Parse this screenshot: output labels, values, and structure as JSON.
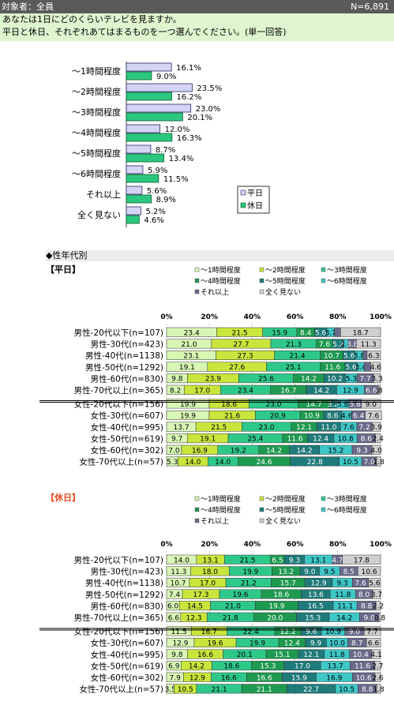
{
  "header": {
    "target": "対象者：全員",
    "n": "N=6,891"
  },
  "question": {
    "line1": "あなたは1日にどのくらいテレビを見ますか。",
    "line2": "平日と休日、それぞれあてはまるものを一つ選んでください。(単一回答)"
  },
  "section": {
    "title": "◆性年代別"
  },
  "weekday_title": "【平日】",
  "holiday_title": "【休日】",
  "colors": {
    "weekday_bar": "#d4d4f4",
    "holiday_bar": "#2cc77f",
    "seg": [
      "#d8f6b4",
      "#c8e63c",
      "#2ec98a",
      "#1e9a50",
      "#1f7a7a",
      "#3ec7c7",
      "#6a6a8a",
      "#cfcfcf"
    ]
  },
  "chart_data": [
    {
      "type": "bar",
      "orientation": "horizontal",
      "categories": [
        "～1時間程度",
        "～2時間程度",
        "～3時間程度",
        "～4時間程度",
        "～5時間程度",
        "～6時間程度",
        "それ以上",
        "全く見ない"
      ],
      "series": [
        {
          "name": "平日",
          "values": [
            16.1,
            23.5,
            23.0,
            12.0,
            8.7,
            5.9,
            5.6,
            5.2
          ]
        },
        {
          "name": "休日",
          "values": [
            9.0,
            16.2,
            20.1,
            16.3,
            13.4,
            11.5,
            8.9,
            4.6
          ]
        }
      ],
      "value_labels": {
        "平日": [
          "16.1%",
          "23.5%",
          "23.0%",
          "12.0%",
          "8.7%",
          "5.9%",
          "5.6%",
          "5.2%"
        ],
        "休日": [
          "9.0%",
          "16.2%",
          "20.1%",
          "16.3%",
          "13.4%",
          "11.5%",
          "8.9%",
          "4.6%"
        ]
      },
      "xlim": [
        0,
        45
      ],
      "legend": "right"
    },
    {
      "type": "bar",
      "stacked": true,
      "orientation": "horizontal",
      "title": "【平日】",
      "legend_labels": [
        "～1時間程度",
        "～2時間程度",
        "～3時間程度",
        "～4時間程度",
        "～5時間程度",
        "～6時間程度",
        "それ以上",
        "全く見ない"
      ],
      "xticks": [
        "0%",
        "20%",
        "40%",
        "60%",
        "80%",
        "100%"
      ],
      "categories": [
        "男性-20代以下(n=107)",
        "男性-30代(n=423)",
        "男性-40代(n=1138)",
        "男性-50代(n=1292)",
        "男性-60代(n=830)",
        "男性-70代以上(n=365)",
        "女性-20代以下(n=156)",
        "女性-30代(n=607)",
        "女性-40代(n=995)",
        "女性-50代(n=619)",
        "女性-60代(n=302)",
        "女性-70代以上(n=57)"
      ],
      "rows": [
        [
          23.4,
          21.5,
          15.9,
          8.4,
          5.6,
          3.7,
          2.8,
          18.7
        ],
        [
          21.0,
          27.7,
          21.3,
          7.6,
          5.2,
          2.1,
          3.8,
          11.3
        ],
        [
          23.1,
          27.3,
          21.4,
          10.7,
          5.6,
          3.8,
          1.8,
          6.3
        ],
        [
          19.1,
          27.6,
          25.1,
          11.6,
          5.6,
          3.4,
          3.0,
          4.6
        ],
        [
          9.8,
          23.9,
          25.6,
          14.2,
          10.2,
          5.3,
          7.7,
          3.3
        ],
        [
          8.2,
          17.0,
          23.4,
          16.7,
          14.2,
          12.9,
          6.6,
          0.8
        ],
        [
          19.9,
          18.6,
          23.0,
          14.7,
          3.2,
          5.8,
          5.8,
          9.0
        ],
        [
          19.9,
          21.6,
          20.9,
          10.9,
          8.6,
          4.6,
          6.4,
          7.6
        ],
        [
          13.7,
          21.5,
          23.0,
          12.1,
          11.0,
          7.6,
          7.2,
          3.9
        ],
        [
          9.7,
          19.1,
          25.4,
          11.6,
          12.4,
          10.8,
          8.6,
          2.4
        ],
        [
          7.0,
          16.9,
          19.2,
          14.2,
          14.2,
          15.2,
          9.3,
          4.0
        ],
        [
          5.3,
          14.0,
          14.0,
          24.6,
          22.8,
          10.5,
          7.0,
          1.8
        ]
      ],
      "labels": [
        [
          "23.4",
          "21.5",
          "15.9",
          "8.4",
          "5.6",
          "3.7",
          "",
          "18.7"
        ],
        [
          "21.0",
          "27.7",
          "21.3",
          "7.6",
          "5.2",
          "2.1",
          "3.8",
          "11.3"
        ],
        [
          "23.1",
          "27.3",
          "21.4",
          "10.7",
          "5.6",
          "3.8",
          "",
          "6.3"
        ],
        [
          "19.1",
          "27.6",
          "25.1",
          "11.6",
          "5.6",
          "3.4",
          "",
          "4.6"
        ],
        [
          "9.8",
          "23.9",
          "25.6",
          "14.2",
          "10.2",
          "5.3",
          "7.7",
          "3.3"
        ],
        [
          "8.2",
          "17.0",
          "23.4",
          "16.7",
          "14.2",
          "12.9",
          "6.6",
          ".8"
        ],
        [
          "19.9",
          "18.6",
          "23.0",
          "14.7",
          "3.2",
          "5.8",
          "5.8",
          "9.0"
        ],
        [
          "19.9",
          "21.6",
          "20.9",
          "10.9",
          "8.6",
          "4.6",
          "6.4",
          "7.6"
        ],
        [
          "13.7",
          "21.5",
          "23.0",
          "12.1",
          "11.0",
          "7.6",
          "7.2",
          "3.9"
        ],
        [
          "9.7",
          "19.1",
          "25.4",
          "11.6",
          "12.4",
          "10.8",
          "8.6",
          "2.4"
        ],
        [
          "7.0",
          "16.9",
          "19.2",
          "14.2",
          "14.2",
          "15.2",
          "9.3",
          "4.0"
        ],
        [
          "5.3",
          "14.0",
          "14.0",
          "24.6",
          "22.8",
          "10.5",
          "7.0",
          "1.8"
        ]
      ]
    },
    {
      "type": "bar",
      "stacked": true,
      "orientation": "horizontal",
      "title": "【休日】",
      "legend_labels": [
        "～1時間程度",
        "～2時間程度",
        "～3時間程度",
        "～4時間程度",
        "～5時間程度",
        "～6時間程度",
        "それ以上",
        "全く見ない"
      ],
      "xticks": [
        "0%",
        "20%",
        "40%",
        "60%",
        "80%",
        "100%"
      ],
      "categories": [
        "男性-20代以下(n=107)",
        "男性-30代(n=423)",
        "男性-40代(n=1138)",
        "男性-50代(n=1292)",
        "男性-60代(n=830)",
        "男性-70代以上(n=365)",
        "女性-20代以下(n=156)",
        "女性-30代(n=607)",
        "女性-40代(n=995)",
        "女性-50代(n=619)",
        "女性-60代(n=302)",
        "女性-70代以上(n=57)"
      ],
      "rows": [
        [
          14.0,
          13.1,
          21.5,
          6.5,
          9.3,
          13.1,
          4.7,
          17.8
        ],
        [
          11.3,
          18.0,
          19.9,
          13.2,
          9.0,
          9.5,
          8.5,
          10.6
        ],
        [
          10.7,
          17.0,
          21.2,
          15.7,
          12.9,
          9.3,
          7.6,
          5.6
        ],
        [
          7.4,
          17.3,
          19.6,
          18.6,
          13.6,
          11.8,
          8.0,
          3.7
        ],
        [
          6.0,
          14.5,
          21.0,
          19.9,
          16.5,
          11.1,
          8.8,
          2.2
        ],
        [
          6.6,
          12.3,
          21.8,
          20.0,
          15.3,
          14.2,
          9.0,
          0.8
        ],
        [
          11.5,
          16.7,
          22.4,
          12.2,
          9.6,
          10.9,
          9.0,
          7.7
        ],
        [
          12.9,
          19.6,
          19.9,
          12.4,
          9.9,
          10.0,
          8.7,
          6.6
        ],
        [
          9.8,
          16.6,
          20.1,
          15.1,
          12.1,
          11.8,
          10.4,
          4.1
        ],
        [
          6.9,
          14.2,
          18.6,
          15.3,
          17.0,
          13.7,
          11.6,
          2.7
        ],
        [
          7.9,
          12.9,
          16.6,
          16.6,
          15.9,
          16.9,
          10.6,
          2.6
        ],
        [
          3.5,
          10.5,
          21.1,
          21.1,
          22.7,
          10.5,
          8.8,
          1.8
        ]
      ],
      "labels": [
        [
          "14.0",
          "13.1",
          "21.5",
          "6.5",
          "9.3",
          "13.1",
          "4.7",
          "17.8"
        ],
        [
          "11.3",
          "18.0",
          "19.9",
          "13.2",
          "9.0",
          "9.5",
          "8.5",
          "10.6"
        ],
        [
          "10.7",
          "17.0",
          "21.2",
          "15.7",
          "12.9",
          "9.3",
          "7.6",
          "5.6"
        ],
        [
          "7.4",
          "17.3",
          "19.6",
          "18.6",
          "13.6",
          "11.8",
          "8.0",
          "3.7"
        ],
        [
          "6.0",
          "14.5",
          "21.0",
          "19.9",
          "16.5",
          "11.1",
          "8.8",
          "2.2"
        ],
        [
          "6.6",
          "12.3",
          "21.8",
          "20.0",
          "15.3",
          "14.2",
          "9.0",
          "0.8"
        ],
        [
          "11.5",
          "16.7",
          "22.4",
          "12.2",
          "9.6",
          "10.9",
          "9.0",
          "7.7"
        ],
        [
          "12.9",
          "19.6",
          "19.9",
          "12.4",
          "9.9",
          "10.0",
          "8.7",
          "6.6"
        ],
        [
          "9.8",
          "16.6",
          "20.1",
          "15.1",
          "12.1",
          "11.8",
          "10.4",
          "4.1"
        ],
        [
          "6.9",
          "14.2",
          "18.6",
          "15.3",
          "17.0",
          "13.7",
          "11.6",
          "2.7"
        ],
        [
          "7.9",
          "12.9",
          "16.6",
          "16.6",
          "15.9",
          "16.9",
          "10.6",
          "2.6"
        ],
        [
          "3.5",
          "10.5",
          "21.1",
          "21.1",
          "22.7",
          "10.5",
          "8.8",
          "1.8"
        ]
      ]
    }
  ]
}
